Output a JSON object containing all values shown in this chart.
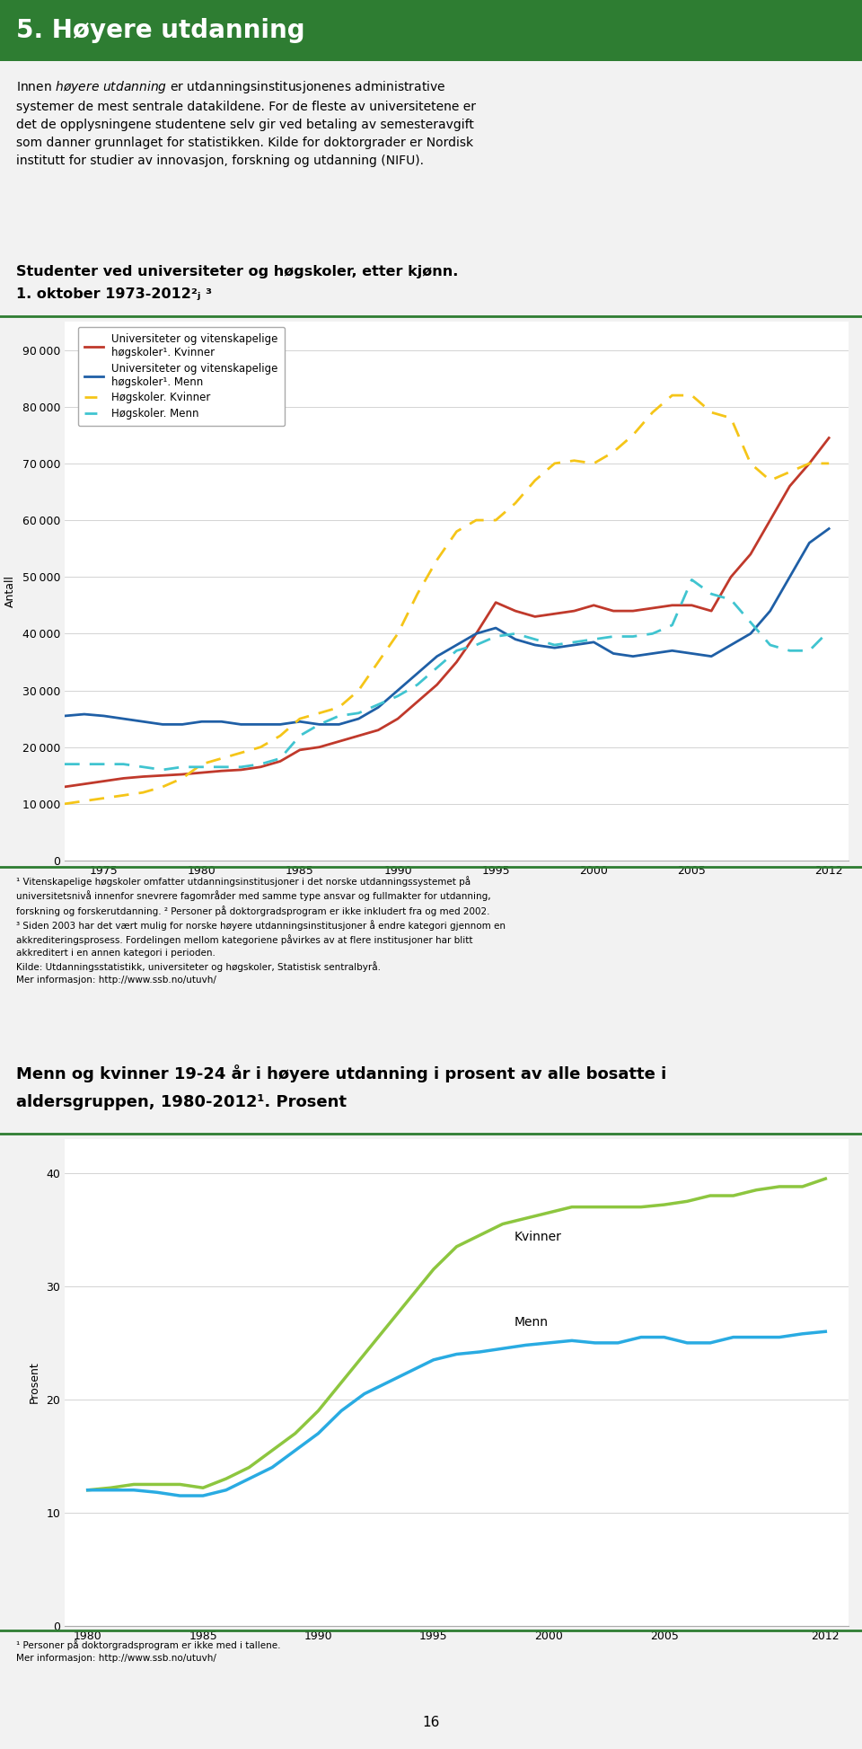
{
  "header_title": "5. Høyere utdanning",
  "header_color": "#2e7d32",
  "chart1_title1": "Studenter ved universiteter og høgskoler, etter kjønn.",
  "chart1_title2": "1. oktober 1973-2012²³ ³",
  "chart1_ylabel": "Antall",
  "chart1_yticks": [
    0,
    10000,
    20000,
    30000,
    40000,
    50000,
    60000,
    70000,
    80000,
    90000
  ],
  "chart1_ylim": [
    0,
    95000
  ],
  "chart1_xticks": [
    1975,
    1980,
    1985,
    1990,
    1995,
    2000,
    2005,
    2012
  ],
  "chart1_xlim": [
    1973,
    2013
  ],
  "chart1_legend": [
    "Universiteter og vitenskapelige\nhøgskoler¹. Kvinner",
    "Universiteter og vitenskapelige\nhøgskoler¹. Menn",
    "Høgskoler. Kvinner",
    "Høgskoler. Menn"
  ],
  "chart1_colors": [
    "#c0392b",
    "#1f5fa6",
    "#f5c518",
    "#40c4d0"
  ],
  "chart1_styles": [
    "solid",
    "solid",
    "dashed",
    "dashed"
  ],
  "uni_kvinner_years": [
    1973,
    1974,
    1975,
    1976,
    1977,
    1978,
    1979,
    1980,
    1981,
    1982,
    1983,
    1984,
    1985,
    1986,
    1987,
    1988,
    1989,
    1990,
    1991,
    1992,
    1993,
    1994,
    1995,
    1996,
    1997,
    1998,
    1999,
    2000,
    2001,
    2002,
    2003,
    2004,
    2005,
    2006,
    2007,
    2008,
    2009,
    2010,
    2011,
    2012
  ],
  "uni_kvinner_vals": [
    13000,
    13500,
    14000,
    14500,
    14800,
    15000,
    15200,
    15500,
    15800,
    16000,
    16500,
    17500,
    19500,
    20000,
    21000,
    22000,
    23000,
    25000,
    28000,
    31000,
    35000,
    40000,
    45500,
    44000,
    43000,
    43500,
    44000,
    45000,
    44000,
    44000,
    44500,
    45000,
    45000,
    44000,
    50000,
    54000,
    60000,
    66000,
    70000,
    74500
  ],
  "uni_menn_years": [
    1973,
    1974,
    1975,
    1976,
    1977,
    1978,
    1979,
    1980,
    1981,
    1982,
    1983,
    1984,
    1985,
    1986,
    1987,
    1988,
    1989,
    1990,
    1991,
    1992,
    1993,
    1994,
    1995,
    1996,
    1997,
    1998,
    1999,
    2000,
    2001,
    2002,
    2003,
    2004,
    2005,
    2006,
    2007,
    2008,
    2009,
    2010,
    2011,
    2012
  ],
  "uni_menn_vals": [
    25500,
    25800,
    25500,
    25000,
    24500,
    24000,
    24000,
    24500,
    24500,
    24000,
    24000,
    24000,
    24500,
    24000,
    24000,
    25000,
    27000,
    30000,
    33000,
    36000,
    38000,
    40000,
    41000,
    39000,
    38000,
    37500,
    38000,
    38500,
    36500,
    36000,
    36500,
    37000,
    36500,
    36000,
    38000,
    40000,
    44000,
    50000,
    56000,
    58500
  ],
  "hogs_kv_years": [
    1973,
    1974,
    1975,
    1976,
    1977,
    1978,
    1979,
    1980,
    1981,
    1982,
    1983,
    1984,
    1985,
    1986,
    1987,
    1988,
    1989,
    1990,
    1991,
    1992,
    1993,
    1994,
    1995,
    1996,
    1997,
    1998,
    1999,
    2000,
    2001,
    2002,
    2003,
    2004,
    2005,
    2006,
    2007,
    2008,
    2009,
    2010,
    2011,
    2012
  ],
  "hogs_kv_vals": [
    10000,
    10500,
    11000,
    11500,
    12000,
    13000,
    14500,
    17000,
    18000,
    19000,
    20000,
    22000,
    25000,
    26000,
    27000,
    30000,
    35000,
    40000,
    47000,
    53000,
    58000,
    60000,
    60000,
    63000,
    67000,
    70000,
    70500,
    70000,
    72000,
    75000,
    79000,
    82000,
    82000,
    79000,
    78000,
    70000,
    67000,
    68500,
    70000,
    70000
  ],
  "hogs_mn_years": [
    1973,
    1974,
    1975,
    1976,
    1977,
    1978,
    1979,
    1980,
    1981,
    1982,
    1983,
    1984,
    1985,
    1986,
    1987,
    1988,
    1989,
    1990,
    1991,
    1992,
    1993,
    1994,
    1995,
    1996,
    1997,
    1998,
    1999,
    2000,
    2001,
    2002,
    2003,
    2004,
    2005,
    2006,
    2007,
    2008,
    2009,
    2010,
    2011,
    2012
  ],
  "hogs_mn_vals": [
    17000,
    17000,
    17000,
    17000,
    16500,
    16000,
    16500,
    16500,
    16500,
    16500,
    17000,
    18000,
    22000,
    24000,
    25500,
    26000,
    27500,
    29000,
    31000,
    34000,
    37000,
    38000,
    39500,
    40000,
    39000,
    38000,
    38500,
    39000,
    39500,
    39500,
    40000,
    41500,
    49500,
    47000,
    46000,
    42000,
    38000,
    37000,
    37000,
    40500
  ],
  "chart2_ylabel": "Prosent",
  "chart2_yticks": [
    0,
    10,
    20,
    30,
    40
  ],
  "chart2_ylim": [
    0,
    43
  ],
  "chart2_xticks": [
    1980,
    1985,
    1990,
    1995,
    2000,
    2005,
    2012
  ],
  "chart2_xlim": [
    1979,
    2013
  ],
  "chart2_colors": [
    "#8dc63f",
    "#29abe2"
  ],
  "kvinner_pct_years": [
    1980,
    1981,
    1982,
    1983,
    1984,
    1985,
    1986,
    1987,
    1988,
    1989,
    1990,
    1991,
    1992,
    1993,
    1994,
    1995,
    1996,
    1997,
    1998,
    1999,
    2000,
    2001,
    2002,
    2003,
    2004,
    2005,
    2006,
    2007,
    2008,
    2009,
    2010,
    2011,
    2012
  ],
  "kvinner_pct_vals": [
    12.0,
    12.2,
    12.5,
    12.5,
    12.5,
    12.2,
    13.0,
    14.0,
    15.5,
    17.0,
    19.0,
    21.5,
    24.0,
    26.5,
    29.0,
    31.5,
    33.5,
    34.5,
    35.5,
    36.0,
    36.5,
    37.0,
    37.0,
    37.0,
    37.0,
    37.2,
    37.5,
    38.0,
    38.0,
    38.5,
    38.8,
    38.8,
    39.5
  ],
  "menn_pct_years": [
    1980,
    1981,
    1982,
    1983,
    1984,
    1985,
    1986,
    1987,
    1988,
    1989,
    1990,
    1991,
    1992,
    1993,
    1994,
    1995,
    1996,
    1997,
    1998,
    1999,
    2000,
    2001,
    2002,
    2003,
    2004,
    2005,
    2006,
    2007,
    2008,
    2009,
    2010,
    2011,
    2012
  ],
  "menn_pct_vals": [
    12.0,
    12.0,
    12.0,
    11.8,
    11.5,
    11.5,
    12.0,
    13.0,
    14.0,
    15.5,
    17.0,
    19.0,
    20.5,
    21.5,
    22.5,
    23.5,
    24.0,
    24.2,
    24.5,
    24.8,
    25.0,
    25.2,
    25.0,
    25.0,
    25.5,
    25.5,
    25.0,
    25.0,
    25.5,
    25.5,
    25.5,
    25.8,
    26.0
  ],
  "page_number": "16"
}
